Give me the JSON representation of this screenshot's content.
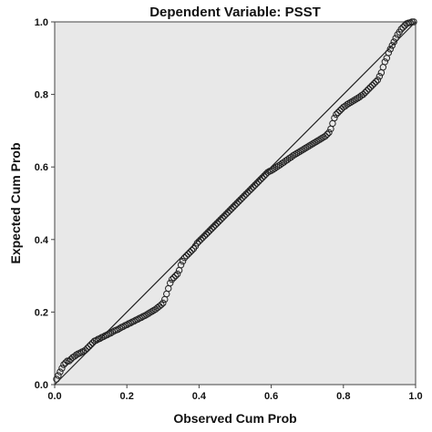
{
  "chart_data": {
    "type": "scatter",
    "title": "Dependent Variable: PSST",
    "xlabel": "Observed Cum Prob",
    "ylabel": "Expected Cum Prob",
    "xlim": [
      0,
      1
    ],
    "ylim": [
      0,
      1
    ],
    "xticks": [
      "0.0",
      "0.2",
      "0.4",
      "0.6",
      "0.8",
      "1.0"
    ],
    "yticks": [
      "0.0",
      "0.2",
      "0.4",
      "0.6",
      "0.8",
      "1.0"
    ],
    "reference_line": [
      [
        0,
        0
      ],
      [
        1,
        1
      ]
    ],
    "grid": false,
    "colors": {
      "plot_bg": "#e8e8e8",
      "marker_stroke": "#222222",
      "line": "#222222",
      "frame": "#444444"
    },
    "points": [
      [
        0.005,
        0.015
      ],
      [
        0.01,
        0.025
      ],
      [
        0.015,
        0.035
      ],
      [
        0.02,
        0.045
      ],
      [
        0.025,
        0.055
      ],
      [
        0.03,
        0.06
      ],
      [
        0.035,
        0.065
      ],
      [
        0.04,
        0.065
      ],
      [
        0.045,
        0.07
      ],
      [
        0.05,
        0.075
      ],
      [
        0.055,
        0.078
      ],
      [
        0.06,
        0.082
      ],
      [
        0.065,
        0.085
      ],
      [
        0.07,
        0.087
      ],
      [
        0.075,
        0.09
      ],
      [
        0.08,
        0.092
      ],
      [
        0.085,
        0.095
      ],
      [
        0.09,
        0.1
      ],
      [
        0.095,
        0.105
      ],
      [
        0.1,
        0.11
      ],
      [
        0.105,
        0.115
      ],
      [
        0.11,
        0.12
      ],
      [
        0.115,
        0.122
      ],
      [
        0.12,
        0.125
      ],
      [
        0.125,
        0.127
      ],
      [
        0.13,
        0.13
      ],
      [
        0.135,
        0.132
      ],
      [
        0.14,
        0.135
      ],
      [
        0.145,
        0.137
      ],
      [
        0.15,
        0.14
      ],
      [
        0.155,
        0.142
      ],
      [
        0.16,
        0.145
      ],
      [
        0.165,
        0.148
      ],
      [
        0.17,
        0.15
      ],
      [
        0.175,
        0.152
      ],
      [
        0.18,
        0.155
      ],
      [
        0.185,
        0.158
      ],
      [
        0.19,
        0.16
      ],
      [
        0.195,
        0.163
      ],
      [
        0.2,
        0.165
      ],
      [
        0.205,
        0.168
      ],
      [
        0.21,
        0.17
      ],
      [
        0.215,
        0.173
      ],
      [
        0.22,
        0.175
      ],
      [
        0.225,
        0.178
      ],
      [
        0.23,
        0.18
      ],
      [
        0.235,
        0.183
      ],
      [
        0.24,
        0.185
      ],
      [
        0.245,
        0.188
      ],
      [
        0.25,
        0.19
      ],
      [
        0.255,
        0.193
      ],
      [
        0.26,
        0.196
      ],
      [
        0.265,
        0.199
      ],
      [
        0.27,
        0.202
      ],
      [
        0.275,
        0.205
      ],
      [
        0.28,
        0.208
      ],
      [
        0.285,
        0.212
      ],
      [
        0.29,
        0.216
      ],
      [
        0.295,
        0.22
      ],
      [
        0.3,
        0.225
      ],
      [
        0.305,
        0.235
      ],
      [
        0.31,
        0.25
      ],
      [
        0.315,
        0.265
      ],
      [
        0.32,
        0.28
      ],
      [
        0.325,
        0.29
      ],
      [
        0.33,
        0.295
      ],
      [
        0.335,
        0.3
      ],
      [
        0.34,
        0.305
      ],
      [
        0.345,
        0.315
      ],
      [
        0.35,
        0.33
      ],
      [
        0.355,
        0.34
      ],
      [
        0.36,
        0.35
      ],
      [
        0.365,
        0.355
      ],
      [
        0.37,
        0.36
      ],
      [
        0.375,
        0.365
      ],
      [
        0.38,
        0.37
      ],
      [
        0.385,
        0.375
      ],
      [
        0.39,
        0.382
      ],
      [
        0.395,
        0.39
      ],
      [
        0.4,
        0.395
      ],
      [
        0.405,
        0.4
      ],
      [
        0.41,
        0.405
      ],
      [
        0.415,
        0.41
      ],
      [
        0.42,
        0.415
      ],
      [
        0.425,
        0.42
      ],
      [
        0.43,
        0.425
      ],
      [
        0.435,
        0.43
      ],
      [
        0.44,
        0.435
      ],
      [
        0.445,
        0.44
      ],
      [
        0.45,
        0.445
      ],
      [
        0.455,
        0.45
      ],
      [
        0.46,
        0.455
      ],
      [
        0.465,
        0.46
      ],
      [
        0.47,
        0.465
      ],
      [
        0.475,
        0.47
      ],
      [
        0.48,
        0.475
      ],
      [
        0.485,
        0.48
      ],
      [
        0.49,
        0.485
      ],
      [
        0.495,
        0.49
      ],
      [
        0.5,
        0.495
      ],
      [
        0.505,
        0.5
      ],
      [
        0.51,
        0.505
      ],
      [
        0.515,
        0.51
      ],
      [
        0.52,
        0.515
      ],
      [
        0.525,
        0.52
      ],
      [
        0.53,
        0.525
      ],
      [
        0.535,
        0.53
      ],
      [
        0.54,
        0.535
      ],
      [
        0.545,
        0.54
      ],
      [
        0.55,
        0.545
      ],
      [
        0.555,
        0.55
      ],
      [
        0.56,
        0.555
      ],
      [
        0.565,
        0.56
      ],
      [
        0.57,
        0.565
      ],
      [
        0.575,
        0.57
      ],
      [
        0.58,
        0.575
      ],
      [
        0.585,
        0.58
      ],
      [
        0.59,
        0.585
      ],
      [
        0.595,
        0.588
      ],
      [
        0.6,
        0.59
      ],
      [
        0.605,
        0.593
      ],
      [
        0.61,
        0.596
      ],
      [
        0.615,
        0.6
      ],
      [
        0.62,
        0.603
      ],
      [
        0.625,
        0.606
      ],
      [
        0.63,
        0.61
      ],
      [
        0.635,
        0.613
      ],
      [
        0.64,
        0.617
      ],
      [
        0.645,
        0.62
      ],
      [
        0.65,
        0.624
      ],
      [
        0.655,
        0.627
      ],
      [
        0.66,
        0.631
      ],
      [
        0.665,
        0.634
      ],
      [
        0.67,
        0.637
      ],
      [
        0.675,
        0.64
      ],
      [
        0.68,
        0.643
      ],
      [
        0.685,
        0.646
      ],
      [
        0.69,
        0.649
      ],
      [
        0.695,
        0.652
      ],
      [
        0.7,
        0.655
      ],
      [
        0.705,
        0.658
      ],
      [
        0.71,
        0.661
      ],
      [
        0.715,
        0.664
      ],
      [
        0.72,
        0.667
      ],
      [
        0.725,
        0.67
      ],
      [
        0.73,
        0.673
      ],
      [
        0.735,
        0.676
      ],
      [
        0.74,
        0.679
      ],
      [
        0.745,
        0.682
      ],
      [
        0.75,
        0.685
      ],
      [
        0.755,
        0.69
      ],
      [
        0.76,
        0.695
      ],
      [
        0.765,
        0.705
      ],
      [
        0.77,
        0.72
      ],
      [
        0.775,
        0.735
      ],
      [
        0.78,
        0.745
      ],
      [
        0.785,
        0.75
      ],
      [
        0.79,
        0.755
      ],
      [
        0.795,
        0.76
      ],
      [
        0.8,
        0.765
      ],
      [
        0.805,
        0.768
      ],
      [
        0.81,
        0.772
      ],
      [
        0.815,
        0.775
      ],
      [
        0.82,
        0.778
      ],
      [
        0.825,
        0.781
      ],
      [
        0.83,
        0.784
      ],
      [
        0.835,
        0.787
      ],
      [
        0.84,
        0.79
      ],
      [
        0.845,
        0.793
      ],
      [
        0.85,
        0.797
      ],
      [
        0.855,
        0.8
      ],
      [
        0.86,
        0.805
      ],
      [
        0.865,
        0.81
      ],
      [
        0.87,
        0.815
      ],
      [
        0.875,
        0.82
      ],
      [
        0.88,
        0.825
      ],
      [
        0.885,
        0.83
      ],
      [
        0.89,
        0.835
      ],
      [
        0.895,
        0.84
      ],
      [
        0.9,
        0.85
      ],
      [
        0.905,
        0.86
      ],
      [
        0.91,
        0.875
      ],
      [
        0.915,
        0.89
      ],
      [
        0.92,
        0.9
      ],
      [
        0.925,
        0.915
      ],
      [
        0.93,
        0.925
      ],
      [
        0.935,
        0.935
      ],
      [
        0.94,
        0.945
      ],
      [
        0.945,
        0.955
      ],
      [
        0.95,
        0.965
      ],
      [
        0.955,
        0.972
      ],
      [
        0.96,
        0.98
      ],
      [
        0.965,
        0.985
      ],
      [
        0.97,
        0.99
      ],
      [
        0.975,
        0.995
      ],
      [
        0.98,
        0.997
      ],
      [
        0.985,
        0.998
      ],
      [
        0.99,
        1.0
      ],
      [
        0.995,
        1.0
      ]
    ]
  }
}
